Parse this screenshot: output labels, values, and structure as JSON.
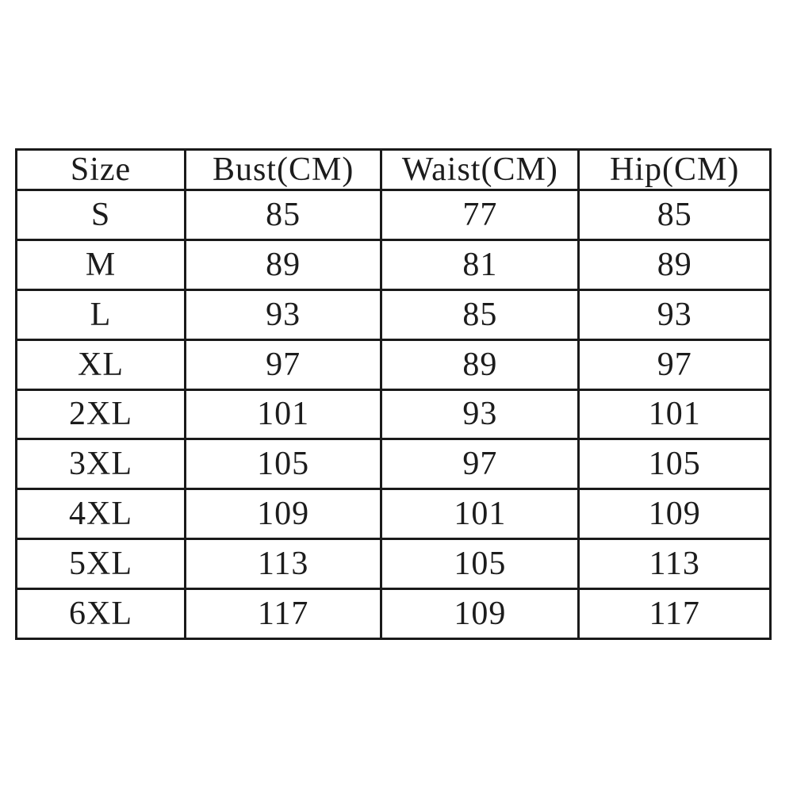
{
  "colors": {
    "background": "#ffffff",
    "border": "#1a1a1a",
    "text": "#1c1c1c"
  },
  "size_chart": {
    "headers": [
      "Size",
      "Bust(CM)",
      "Waist(CM)",
      "Hip(CM)"
    ],
    "rows": [
      [
        "S",
        "85",
        "77",
        "85"
      ],
      [
        "M",
        "89",
        "81",
        "89"
      ],
      [
        "L",
        "93",
        "85",
        "93"
      ],
      [
        "XL",
        "97",
        "89",
        "97"
      ],
      [
        "2XL",
        "101",
        "93",
        "101"
      ],
      [
        "3XL",
        "105",
        "97",
        "105"
      ],
      [
        "4XL",
        "109",
        "101",
        "109"
      ],
      [
        "5XL",
        "113",
        "105",
        "113"
      ],
      [
        "6XL",
        "117",
        "109",
        "117"
      ]
    ]
  }
}
